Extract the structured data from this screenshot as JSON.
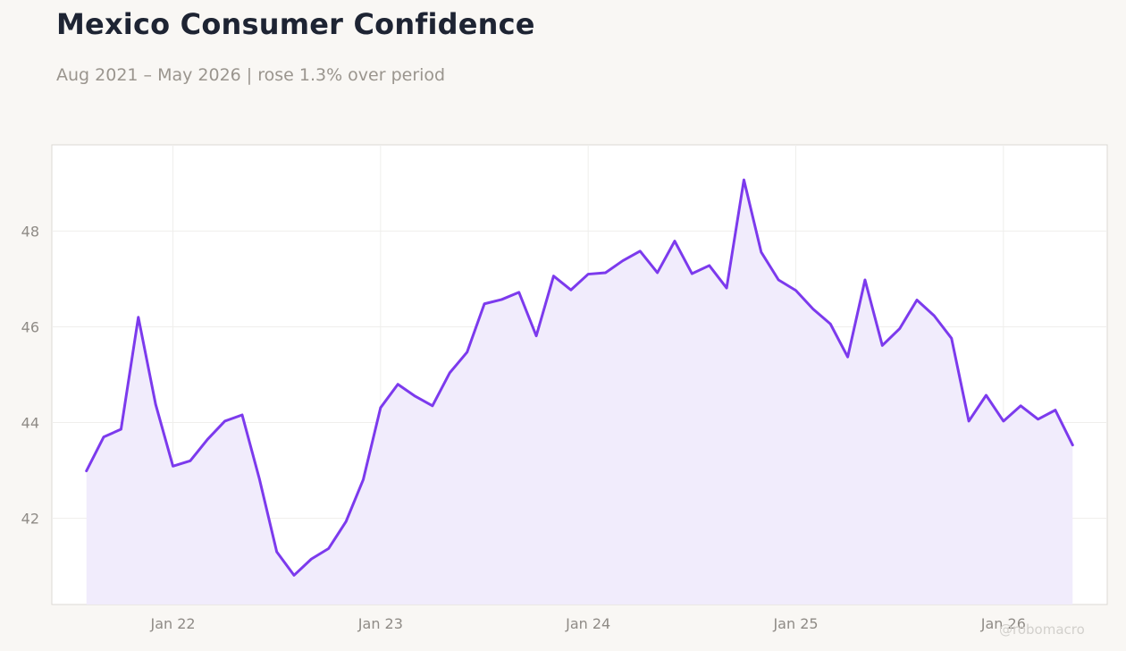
{
  "header": {
    "title": "Mexico Consumer Confidence",
    "subtitle": "Aug 2021 – May 2026 | rose 1.3% over period"
  },
  "watermark": "@robomacro",
  "colors": {
    "line": "#7c3aed",
    "fill": "#f1ecfc",
    "background": "#f9f7f4",
    "plot_background": "#ffffff",
    "grid": "#efeeec",
    "text_title": "#1e2433",
    "text_muted": "#9a958e"
  },
  "chart_data": {
    "type": "area",
    "title": "Mexico Consumer Confidence",
    "subtitle": "Aug 2021 – May 2026 | rose 1.3% over period",
    "xlabel": "",
    "ylabel": "",
    "grid": true,
    "legend": "none",
    "xlim": [
      "2021-06",
      "2026-07"
    ],
    "ylim": [
      40.2,
      49.8
    ],
    "x_ticks": [
      {
        "date": "2022-01",
        "label": "Jan 22"
      },
      {
        "date": "2023-01",
        "label": "Jan 23"
      },
      {
        "date": "2024-01",
        "label": "Jan 24"
      },
      {
        "date": "2025-01",
        "label": "Jan 25"
      },
      {
        "date": "2026-01",
        "label": "Jan 26"
      }
    ],
    "y_ticks": [
      42,
      44,
      46,
      48
    ],
    "y_tick_labels": [
      "42",
      "44",
      "46",
      "48"
    ],
    "x": [
      "2021-08",
      "2021-09",
      "2021-10",
      "2021-11",
      "2021-12",
      "2022-01",
      "2022-02",
      "2022-03",
      "2022-04",
      "2022-05",
      "2022-06",
      "2022-07",
      "2022-08",
      "2022-09",
      "2022-10",
      "2022-11",
      "2022-12",
      "2023-01",
      "2023-02",
      "2023-03",
      "2023-04",
      "2023-05",
      "2023-06",
      "2023-07",
      "2023-08",
      "2023-09",
      "2023-10",
      "2023-11",
      "2023-12",
      "2024-01",
      "2024-02",
      "2024-03",
      "2024-04",
      "2024-05",
      "2024-06",
      "2024-07",
      "2024-08",
      "2024-09",
      "2024-10",
      "2024-11",
      "2024-12",
      "2025-01",
      "2025-02",
      "2025-03",
      "2025-04",
      "2025-05",
      "2025-06",
      "2025-07",
      "2025-08",
      "2025-09",
      "2025-10",
      "2025-11",
      "2025-12",
      "2026-01",
      "2026-02",
      "2026-03",
      "2026-04",
      "2026-05"
    ],
    "series": [
      {
        "values": [
          42.99,
          43.7,
          43.86,
          46.2,
          44.38,
          43.09,
          43.2,
          43.65,
          44.03,
          44.16,
          42.82,
          41.3,
          40.81,
          41.15,
          41.37,
          41.93,
          42.81,
          44.31,
          44.8,
          44.55,
          44.35,
          45.04,
          45.47,
          46.48,
          46.57,
          46.72,
          45.81,
          47.06,
          46.77,
          47.1,
          47.13,
          47.38,
          47.58,
          47.13,
          47.79,
          47.11,
          47.28,
          46.81,
          49.07,
          47.56,
          46.98,
          46.76,
          46.37,
          46.06,
          45.37,
          46.98,
          45.61,
          45.96,
          46.56,
          46.23,
          45.76,
          44.03,
          44.57,
          44.03,
          44.35,
          44.07,
          44.26,
          43.53
        ]
      }
    ]
  }
}
